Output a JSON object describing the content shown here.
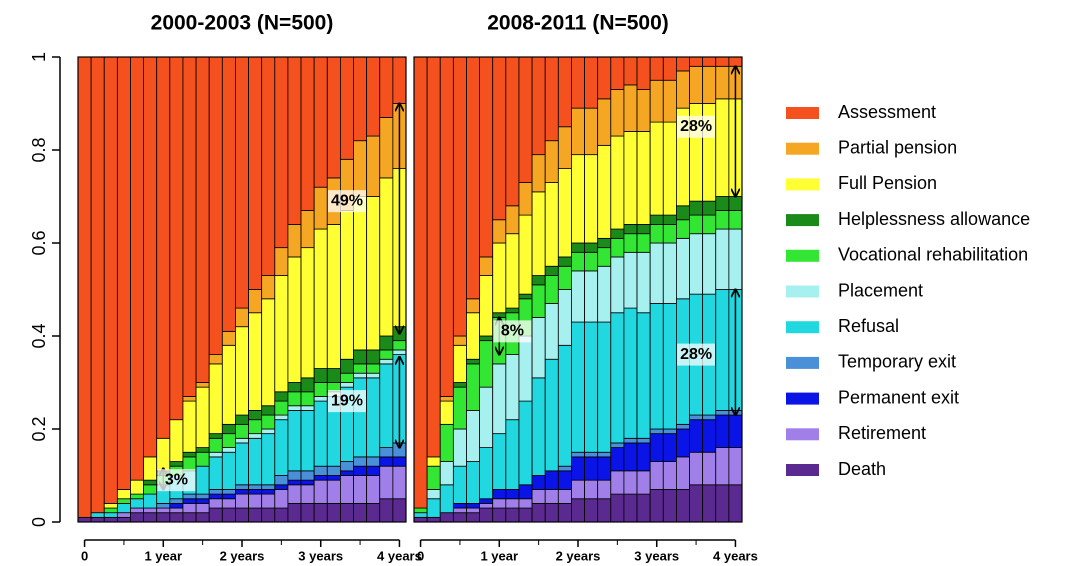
{
  "chart_data": [
    {
      "type": "stacked_bar",
      "title": "2000-2003 (N=500)",
      "categories": [
        "0",
        null,
        null,
        null,
        null,
        null,
        "1 year",
        null,
        null,
        null,
        null,
        null,
        "2 years",
        null,
        null,
        null,
        null,
        null,
        "3 years",
        null,
        null,
        null,
        null,
        null,
        "4 years"
      ],
      "ylim": [
        0,
        1
      ],
      "yticks": [
        0,
        0.2,
        0.4,
        0.6,
        0.8,
        1
      ],
      "annotations": [
        "49%",
        "19%",
        "3%"
      ],
      "series": [
        {
          "name": "Assessment",
          "color": "#f4511e",
          "values": [
            0.99,
            0.98,
            0.96,
            0.93,
            0.91,
            0.86,
            0.82,
            0.78,
            0.73,
            0.7,
            0.64,
            0.59,
            0.54,
            0.5,
            0.47,
            0.41,
            0.36,
            0.33,
            0.28,
            0.26,
            0.22,
            0.18,
            0.17,
            0.13,
            0.1
          ]
        },
        {
          "name": "Partial pension",
          "color": "#f5a623",
          "values": [
            0,
            0,
            0,
            0,
            0,
            0,
            0,
            0,
            0.01,
            0.01,
            0.02,
            0.03,
            0.04,
            0.05,
            0.05,
            0.06,
            0.07,
            0.08,
            0.09,
            0.1,
            0.11,
            0.12,
            0.13,
            0.13,
            0.14
          ]
        },
        {
          "name": "Full Pension",
          "color": "#ffff33",
          "values": [
            0,
            0,
            0.01,
            0.02,
            0.03,
            0.05,
            0.07,
            0.09,
            0.11,
            0.13,
            0.15,
            0.17,
            0.19,
            0.21,
            0.23,
            0.25,
            0.27,
            0.28,
            0.3,
            0.31,
            0.32,
            0.33,
            0.33,
            0.34,
            0.34
          ]
        },
        {
          "name": "Helplessness allowance",
          "color": "#1a8a1a",
          "values": [
            0,
            0,
            0,
            0,
            0,
            0.01,
            0.01,
            0.01,
            0.01,
            0.01,
            0.01,
            0.02,
            0.02,
            0.02,
            0.02,
            0.02,
            0.02,
            0.03,
            0.03,
            0.03,
            0.03,
            0.03,
            0.03,
            0.03,
            0.03
          ]
        },
        {
          "name": "Vocational rehabilitation",
          "color": "#33e633",
          "values": [
            0,
            0,
            0.01,
            0.01,
            0.01,
            0.02,
            0.02,
            0.02,
            0.03,
            0.03,
            0.03,
            0.03,
            0.03,
            0.03,
            0.03,
            0.03,
            0.03,
            0.03,
            0.03,
            0.02,
            0.02,
            0.02,
            0.02,
            0.02,
            0.02
          ]
        },
        {
          "name": "Placement",
          "color": "#a6f0f0",
          "values": [
            0,
            0,
            0,
            0,
            0,
            0,
            0,
            0,
            0,
            0,
            0.01,
            0.01,
            0.01,
            0.01,
            0.01,
            0.01,
            0.01,
            0.01,
            0.01,
            0.01,
            0.01,
            0.01,
            0.01,
            0.01,
            0.01
          ]
        },
        {
          "name": "Refusal",
          "color": "#22d8e0",
          "values": [
            0,
            0.01,
            0.01,
            0.02,
            0.02,
            0.03,
            0.04,
            0.05,
            0.05,
            0.06,
            0.07,
            0.08,
            0.09,
            0.1,
            0.11,
            0.12,
            0.13,
            0.13,
            0.14,
            0.15,
            0.16,
            0.17,
            0.17,
            0.18,
            0.19
          ]
        },
        {
          "name": "Temporary exit",
          "color": "#4a90d9",
          "values": [
            0,
            0,
            0,
            0,
            0,
            0,
            0.01,
            0.01,
            0.01,
            0.01,
            0.01,
            0.01,
            0.01,
            0.01,
            0.01,
            0.02,
            0.02,
            0.02,
            0.02,
            0.02,
            0.02,
            0.02,
            0.02,
            0.02,
            0.03
          ]
        },
        {
          "name": "Permanent exit",
          "color": "#0a14e6",
          "values": [
            0,
            0,
            0,
            0,
            0,
            0,
            0,
            0.01,
            0.01,
            0.01,
            0.01,
            0.01,
            0.01,
            0.01,
            0.01,
            0.01,
            0.01,
            0.01,
            0.01,
            0.01,
            0.01,
            0.02,
            0.02,
            0.02,
            0.02
          ]
        },
        {
          "name": "Retirement",
          "color": "#a080e8",
          "values": [
            0,
            0,
            0,
            0.01,
            0.01,
            0.01,
            0.01,
            0.01,
            0.02,
            0.02,
            0.02,
            0.02,
            0.03,
            0.03,
            0.03,
            0.04,
            0.04,
            0.04,
            0.05,
            0.05,
            0.06,
            0.06,
            0.06,
            0.07,
            0.07
          ]
        },
        {
          "name": "Death",
          "color": "#5a2a90",
          "values": [
            0.01,
            0.01,
            0.01,
            0.01,
            0.02,
            0.02,
            0.02,
            0.02,
            0.02,
            0.02,
            0.03,
            0.03,
            0.03,
            0.03,
            0.03,
            0.03,
            0.04,
            0.04,
            0.04,
            0.04,
            0.04,
            0.04,
            0.04,
            0.05,
            0.05
          ]
        }
      ]
    },
    {
      "type": "stacked_bar",
      "title": "2008-2011 (N=500)",
      "categories": [
        "0",
        null,
        null,
        null,
        null,
        null,
        "1 year",
        null,
        null,
        null,
        null,
        null,
        "2 years",
        null,
        null,
        null,
        null,
        null,
        "3 years",
        null,
        null,
        null,
        null,
        null,
        "4 years"
      ],
      "ylim": [
        0,
        1
      ],
      "annotations": [
        "28%",
        "8%",
        "28%"
      ],
      "series": [
        {
          "name": "Assessment",
          "color": "#f4511e",
          "values": [
            0.97,
            0.86,
            0.73,
            0.6,
            0.52,
            0.43,
            0.35,
            0.32,
            0.27,
            0.21,
            0.18,
            0.15,
            0.11,
            0.11,
            0.09,
            0.07,
            0.06,
            0.07,
            0.05,
            0.05,
            0.03,
            0.02,
            0.02,
            0.02,
            0.02
          ]
        },
        {
          "name": "Partial pension",
          "color": "#f5a623",
          "values": [
            0,
            0,
            0.01,
            0.02,
            0.03,
            0.04,
            0.05,
            0.06,
            0.07,
            0.08,
            0.09,
            0.09,
            0.1,
            0.1,
            0.1,
            0.1,
            0.1,
            0.09,
            0.09,
            0.09,
            0.08,
            0.08,
            0.08,
            0.07,
            0.07
          ]
        },
        {
          "name": "Full Pension",
          "color": "#ffff33",
          "values": [
            0,
            0.02,
            0.05,
            0.08,
            0.1,
            0.13,
            0.15,
            0.16,
            0.17,
            0.18,
            0.18,
            0.19,
            0.19,
            0.19,
            0.2,
            0.2,
            0.2,
            0.2,
            0.2,
            0.2,
            0.21,
            0.21,
            0.21,
            0.21,
            0.21
          ]
        },
        {
          "name": "Helplessness allowance",
          "color": "#1a8a1a",
          "values": [
            0,
            0,
            0,
            0.01,
            0.01,
            0.01,
            0.01,
            0.01,
            0.01,
            0.02,
            0.02,
            0.02,
            0.02,
            0.02,
            0.02,
            0.02,
            0.02,
            0.02,
            0.02,
            0.02,
            0.03,
            0.03,
            0.03,
            0.03,
            0.03
          ]
        },
        {
          "name": "Vocational rehabilitation",
          "color": "#33e633",
          "values": [
            0.01,
            0.05,
            0.08,
            0.09,
            0.1,
            0.1,
            0.1,
            0.09,
            0.08,
            0.07,
            0.06,
            0.05,
            0.04,
            0.04,
            0.04,
            0.04,
            0.04,
            0.04,
            0.04,
            0.04,
            0.04,
            0.04,
            0.04,
            0.04,
            0.04
          ]
        },
        {
          "name": "Placement",
          "color": "#a6f0f0",
          "values": [
            0,
            0.02,
            0.05,
            0.08,
            0.11,
            0.13,
            0.15,
            0.14,
            0.14,
            0.13,
            0.12,
            0.12,
            0.11,
            0.11,
            0.12,
            0.12,
            0.12,
            0.13,
            0.13,
            0.13,
            0.13,
            0.13,
            0.13,
            0.13,
            0.13
          ]
        },
        {
          "name": "Refusal",
          "color": "#22d8e0",
          "values": [
            0.01,
            0.04,
            0.06,
            0.08,
            0.09,
            0.11,
            0.12,
            0.15,
            0.18,
            0.21,
            0.24,
            0.26,
            0.28,
            0.28,
            0.28,
            0.28,
            0.28,
            0.27,
            0.27,
            0.27,
            0.27,
            0.26,
            0.26,
            0.26,
            0.26
          ]
        },
        {
          "name": "Temporary exit",
          "color": "#4a90d9",
          "values": [
            0,
            0,
            0,
            0,
            0,
            0,
            0,
            0,
            0,
            0,
            0,
            0.01,
            0.01,
            0.01,
            0.01,
            0.01,
            0.01,
            0.01,
            0.01,
            0.01,
            0.01,
            0.01,
            0.01,
            0.01,
            0.01
          ]
        },
        {
          "name": "Permanent exit",
          "color": "#0a14e6",
          "values": [
            0,
            0,
            0,
            0.01,
            0.01,
            0.01,
            0.02,
            0.02,
            0.03,
            0.03,
            0.04,
            0.04,
            0.05,
            0.05,
            0.05,
            0.05,
            0.06,
            0.06,
            0.06,
            0.06,
            0.06,
            0.07,
            0.07,
            0.07,
            0.07
          ]
        },
        {
          "name": "Retirement",
          "color": "#a080e8",
          "values": [
            0,
            0,
            0,
            0.01,
            0.01,
            0.01,
            0.02,
            0.02,
            0.02,
            0.03,
            0.03,
            0.03,
            0.04,
            0.04,
            0.04,
            0.05,
            0.05,
            0.05,
            0.06,
            0.06,
            0.07,
            0.07,
            0.07,
            0.08,
            0.08
          ]
        },
        {
          "name": "Death",
          "color": "#5a2a90",
          "values": [
            0.01,
            0.01,
            0.02,
            0.02,
            0.02,
            0.03,
            0.03,
            0.03,
            0.03,
            0.04,
            0.04,
            0.04,
            0.05,
            0.05,
            0.05,
            0.06,
            0.06,
            0.06,
            0.07,
            0.07,
            0.07,
            0.08,
            0.08,
            0.08,
            0.08
          ]
        }
      ]
    }
  ]
}
